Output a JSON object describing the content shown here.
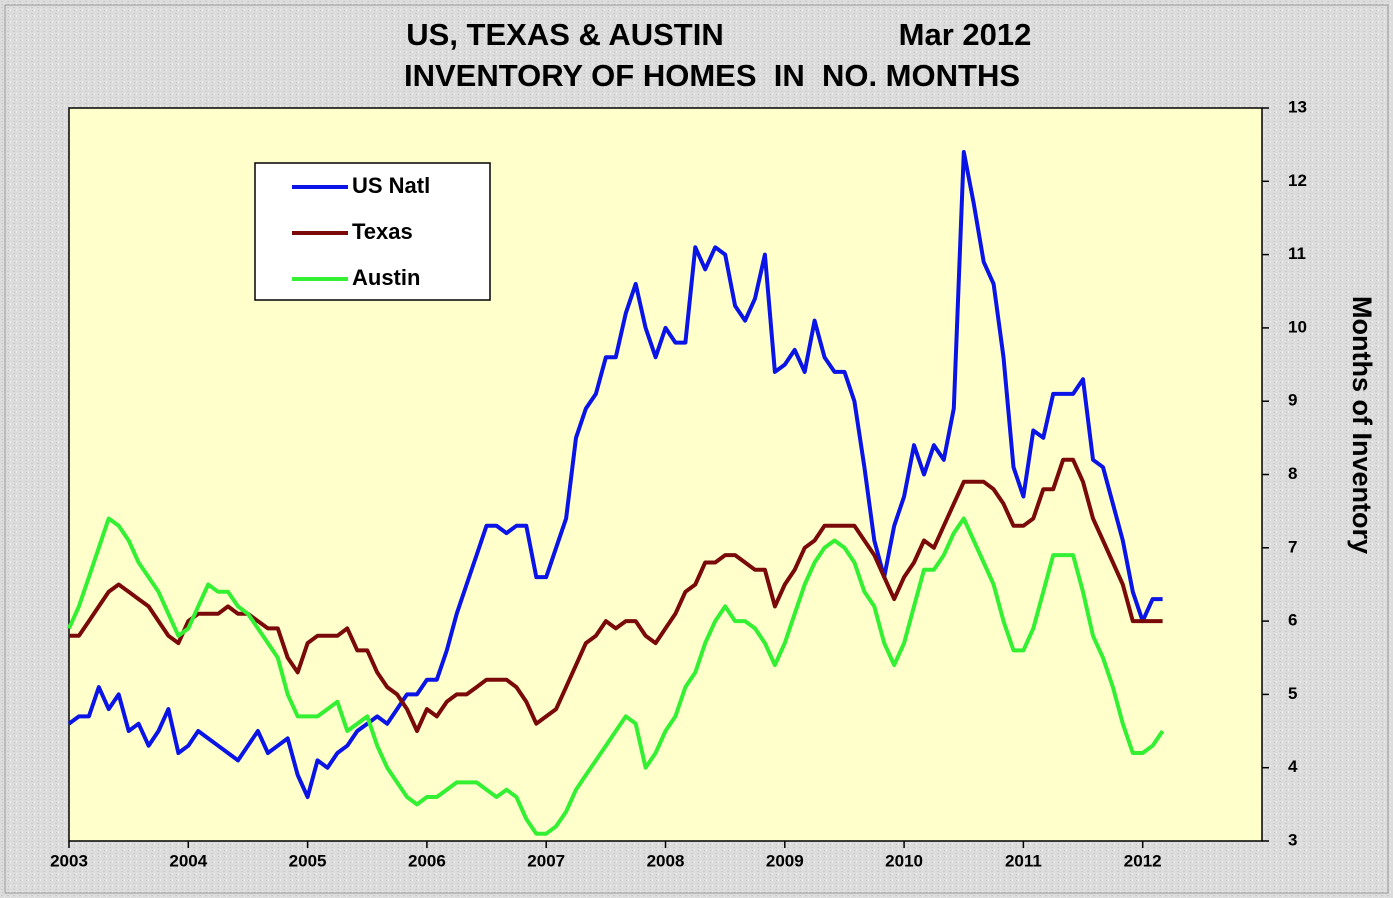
{
  "chart_data": {
    "type": "line",
    "title": "US, TEXAS & AUSTIN",
    "date": "Mar 2012",
    "subtitle": "INVENTORY OF HOMES  IN  NO. MONTHS",
    "y_label": "Months of Inventory",
    "legend": "top-left",
    "grid": false,
    "xlim": [
      2003,
      2013
    ],
    "xticks": [
      2003,
      2004,
      2005,
      2006,
      2007,
      2008,
      2009,
      2010,
      2011,
      2012
    ],
    "ylim": [
      3,
      13
    ],
    "yticks": [
      3,
      4,
      5,
      6,
      7,
      8,
      9,
      10,
      11,
      12,
      13
    ],
    "x": [
      2003,
      2003.083,
      2003.167,
      2003.25,
      2003.333,
      2003.417,
      2003.5,
      2003.583,
      2003.667,
      2003.75,
      2003.833,
      2003.917,
      2004,
      2004.083,
      2004.167,
      2004.25,
      2004.333,
      2004.417,
      2004.5,
      2004.583,
      2004.667,
      2004.75,
      2004.833,
      2004.917,
      2005,
      2005.083,
      2005.167,
      2005.25,
      2005.333,
      2005.417,
      2005.5,
      2005.583,
      2005.667,
      2005.75,
      2005.833,
      2005.917,
      2006,
      2006.083,
      2006.167,
      2006.25,
      2006.333,
      2006.417,
      2006.5,
      2006.583,
      2006.667,
      2006.75,
      2006.833,
      2006.917,
      2007,
      2007.083,
      2007.167,
      2007.25,
      2007.333,
      2007.417,
      2007.5,
      2007.583,
      2007.667,
      2007.75,
      2007.833,
      2007.917,
      2008,
      2008.083,
      2008.167,
      2008.25,
      2008.333,
      2008.417,
      2008.5,
      2008.583,
      2008.667,
      2008.75,
      2008.833,
      2008.917,
      2009,
      2009.083,
      2009.167,
      2009.25,
      2009.333,
      2009.417,
      2009.5,
      2009.583,
      2009.667,
      2009.75,
      2009.833,
      2009.917,
      2010,
      2010.083,
      2010.167,
      2010.25,
      2010.333,
      2010.417,
      2010.5,
      2010.583,
      2010.667,
      2010.75,
      2010.833,
      2010.917,
      2011,
      2011.083,
      2011.167,
      2011.25,
      2011.333,
      2011.417,
      2011.5,
      2011.583,
      2011.667,
      2011.75,
      2011.833,
      2011.917,
      2012,
      2012.083,
      2012.167
    ],
    "series": [
      {
        "name": "US Natl",
        "color": "#0a14e6",
        "values": [
          4.6,
          4.7,
          4.7,
          5.1,
          4.8,
          5.0,
          4.5,
          4.6,
          4.3,
          4.5,
          4.8,
          4.2,
          4.3,
          4.5,
          4.4,
          4.3,
          4.2,
          4.1,
          4.3,
          4.5,
          4.2,
          4.3,
          4.4,
          3.9,
          3.6,
          4.1,
          4.0,
          4.2,
          4.3,
          4.5,
          4.6,
          4.7,
          4.6,
          4.8,
          5.0,
          5.0,
          5.2,
          5.2,
          5.6,
          6.1,
          6.5,
          6.9,
          7.3,
          7.3,
          7.2,
          7.3,
          7.3,
          6.6,
          6.6,
          7.0,
          7.4,
          8.5,
          8.9,
          9.1,
          9.6,
          9.6,
          10.2,
          10.6,
          10.0,
          9.6,
          10.0,
          9.8,
          9.8,
          11.1,
          10.8,
          11.1,
          11.0,
          10.3,
          10.1,
          10.4,
          11.0,
          9.4,
          9.5,
          9.7,
          9.4,
          10.1,
          9.6,
          9.4,
          9.4,
          9.0,
          8.1,
          7.1,
          6.6,
          7.3,
          7.7,
          8.4,
          8.0,
          8.4,
          8.2,
          8.9,
          12.4,
          11.7,
          10.9,
          10.6,
          9.6,
          8.1,
          7.7,
          8.6,
          8.5,
          9.1,
          9.1,
          9.1,
          9.3,
          8.2,
          8.1,
          7.6,
          7.1,
          6.4,
          6.0,
          6.3,
          6.3
        ]
      },
      {
        "name": "Texas",
        "color": "#7a0a0a",
        "values": [
          5.8,
          5.8,
          6.0,
          6.2,
          6.4,
          6.5,
          6.4,
          6.3,
          6.2,
          6.0,
          5.8,
          5.7,
          6.0,
          6.1,
          6.1,
          6.1,
          6.2,
          6.1,
          6.1,
          6.0,
          5.9,
          5.9,
          5.5,
          5.3,
          5.7,
          5.8,
          5.8,
          5.8,
          5.9,
          5.6,
          5.6,
          5.3,
          5.1,
          5.0,
          4.8,
          4.5,
          4.8,
          4.7,
          4.9,
          5.0,
          5.0,
          5.1,
          5.2,
          5.2,
          5.2,
          5.1,
          4.9,
          4.6,
          4.7,
          4.8,
          5.1,
          5.4,
          5.7,
          5.8,
          6.0,
          5.9,
          6.0,
          6.0,
          5.8,
          5.7,
          5.9,
          6.1,
          6.4,
          6.5,
          6.8,
          6.8,
          6.9,
          6.9,
          6.8,
          6.7,
          6.7,
          6.2,
          6.5,
          6.7,
          7.0,
          7.1,
          7.3,
          7.3,
          7.3,
          7.3,
          7.1,
          6.9,
          6.6,
          6.3,
          6.6,
          6.8,
          7.1,
          7.0,
          7.3,
          7.6,
          7.9,
          7.9,
          7.9,
          7.8,
          7.6,
          7.3,
          7.3,
          7.4,
          7.8,
          7.8,
          8.2,
          8.2,
          7.9,
          7.4,
          7.1,
          6.8,
          6.5,
          6.0,
          6.0,
          6.0,
          6.0
        ]
      },
      {
        "name": "Austin",
        "color": "#33f033",
        "values": [
          5.9,
          6.2,
          6.6,
          7.0,
          7.4,
          7.3,
          7.1,
          6.8,
          6.6,
          6.4,
          6.1,
          5.8,
          5.9,
          6.2,
          6.5,
          6.4,
          6.4,
          6.2,
          6.1,
          5.9,
          5.7,
          5.5,
          5.0,
          4.7,
          4.7,
          4.7,
          4.8,
          4.9,
          4.5,
          4.6,
          4.7,
          4.3,
          4.0,
          3.8,
          3.6,
          3.5,
          3.6,
          3.6,
          3.7,
          3.8,
          3.8,
          3.8,
          3.7,
          3.6,
          3.7,
          3.6,
          3.3,
          3.1,
          3.1,
          3.2,
          3.4,
          3.7,
          3.9,
          4.1,
          4.3,
          4.5,
          4.7,
          4.6,
          4.0,
          4.2,
          4.5,
          4.7,
          5.1,
          5.3,
          5.7,
          6.0,
          6.2,
          6.0,
          6.0,
          5.9,
          5.7,
          5.4,
          5.7,
          6.1,
          6.5,
          6.8,
          7.0,
          7.1,
          7.0,
          6.8,
          6.4,
          6.2,
          5.7,
          5.4,
          5.7,
          6.2,
          6.7,
          6.7,
          6.9,
          7.2,
          7.4,
          7.1,
          6.8,
          6.5,
          6.0,
          5.6,
          5.6,
          5.9,
          6.4,
          6.9,
          6.9,
          6.9,
          6.4,
          5.8,
          5.5,
          5.1,
          4.6,
          4.2,
          4.2,
          4.3,
          4.5
        ]
      }
    ]
  }
}
